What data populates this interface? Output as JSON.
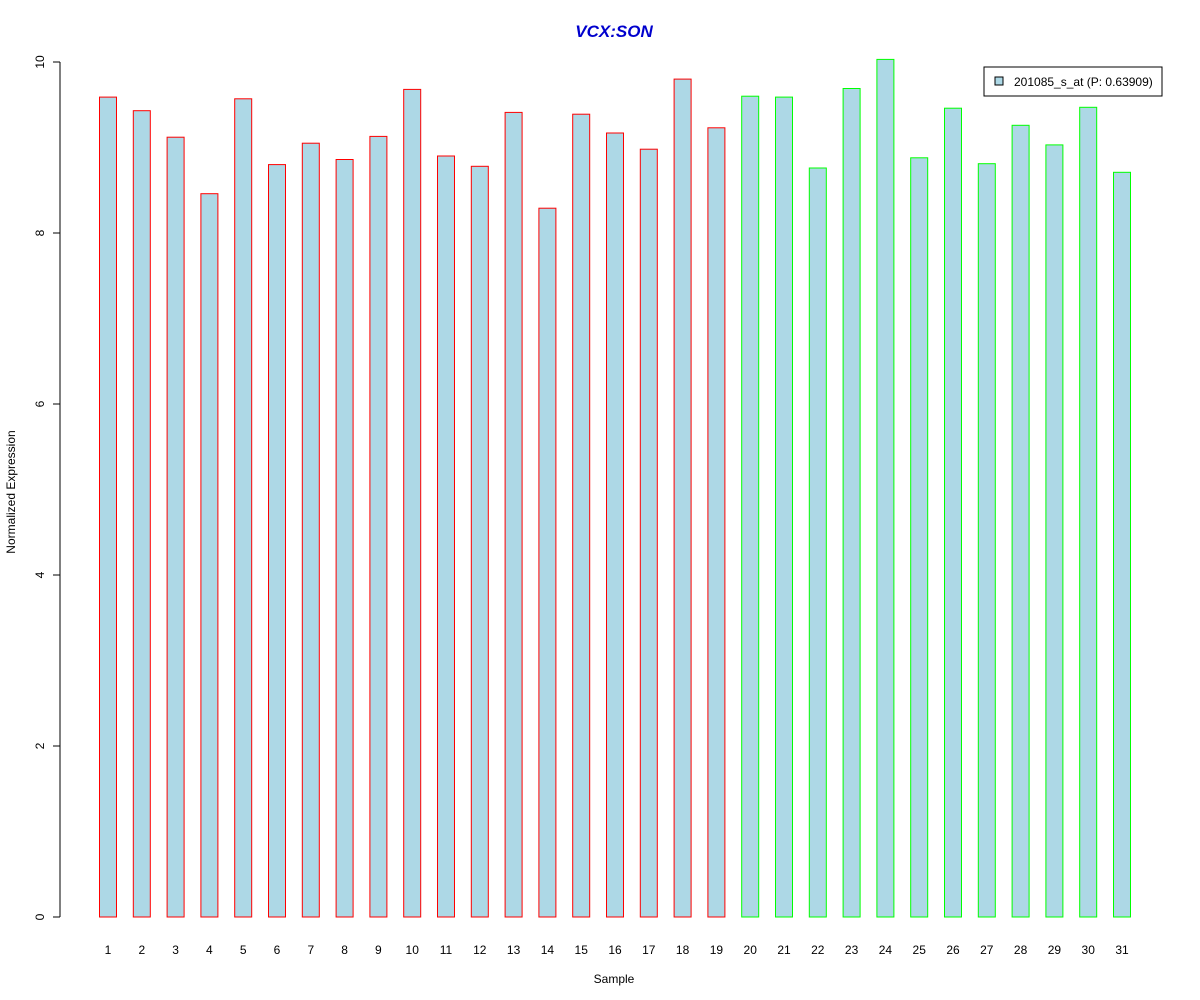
{
  "chart_data": {
    "type": "bar",
    "title": "VCX:SON",
    "title_color": "#0000CD",
    "xlabel": "Sample",
    "ylabel": "Normalized Expression",
    "ylim": [
      0,
      10
    ],
    "yticks": [
      0,
      2,
      4,
      6,
      8,
      10
    ],
    "categories": [
      "1",
      "2",
      "3",
      "4",
      "5",
      "6",
      "7",
      "8",
      "9",
      "10",
      "11",
      "12",
      "13",
      "14",
      "15",
      "16",
      "17",
      "18",
      "19",
      "20",
      "21",
      "22",
      "23",
      "24",
      "25",
      "26",
      "27",
      "28",
      "29",
      "30",
      "31"
    ],
    "values": [
      9.59,
      9.43,
      9.12,
      8.46,
      9.57,
      8.8,
      9.05,
      8.86,
      9.13,
      9.68,
      8.9,
      8.78,
      9.41,
      8.29,
      9.39,
      9.17,
      8.98,
      9.8,
      9.23,
      9.6,
      9.59,
      8.76,
      9.69,
      10.03,
      8.88,
      9.46,
      8.81,
      9.26,
      9.03,
      9.47,
      8.71
    ],
    "group_a_count": 19,
    "bar_fill": "#ADD8E6",
    "group_a_border": "#FF0000",
    "group_b_border": "#00FF00",
    "grid": false,
    "legend_position": "top-right",
    "legend": {
      "label": "201085_s_at (P: 0.63909)"
    }
  }
}
